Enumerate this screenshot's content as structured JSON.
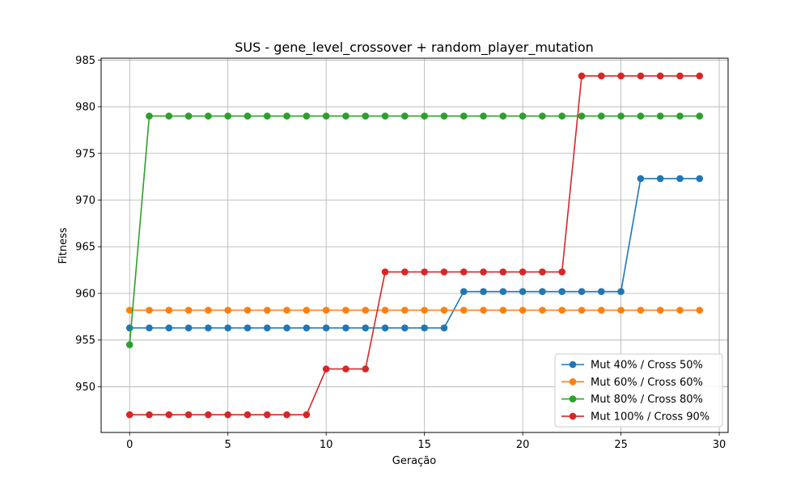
{
  "chart_data": {
    "type": "line",
    "title": "SUS - gene_level_crossover + random_player_mutation",
    "xlabel": "Geração",
    "ylabel": "Fitness",
    "xlim": [
      -1.45,
      30.45
    ],
    "ylim": [
      945.1,
      985.2
    ],
    "xticks": [
      0,
      5,
      10,
      15,
      20,
      25,
      30
    ],
    "yticks": [
      950,
      955,
      960,
      965,
      970,
      975,
      980,
      985
    ],
    "grid": true,
    "legend_position": "lower right",
    "x": [
      0,
      1,
      2,
      3,
      4,
      5,
      6,
      7,
      8,
      9,
      10,
      11,
      12,
      13,
      14,
      15,
      16,
      17,
      18,
      19,
      20,
      21,
      22,
      23,
      24,
      25,
      26,
      27,
      28,
      29
    ],
    "series": [
      {
        "name": "Mut 40% / Cross 50%",
        "color": "#1f77b4",
        "values": [
          956.3,
          956.3,
          956.3,
          956.3,
          956.3,
          956.3,
          956.3,
          956.3,
          956.3,
          956.3,
          956.3,
          956.3,
          956.3,
          956.3,
          956.3,
          956.3,
          956.3,
          960.2,
          960.2,
          960.2,
          960.2,
          960.2,
          960.2,
          960.2,
          960.2,
          960.2,
          972.3,
          972.3,
          972.3,
          972.3
        ]
      },
      {
        "name": "Mut 60% / Cross 60%",
        "color": "#ff7f0e",
        "values": [
          958.2,
          958.2,
          958.2,
          958.2,
          958.2,
          958.2,
          958.2,
          958.2,
          958.2,
          958.2,
          958.2,
          958.2,
          958.2,
          958.2,
          958.2,
          958.2,
          958.2,
          958.2,
          958.2,
          958.2,
          958.2,
          958.2,
          958.2,
          958.2,
          958.2,
          958.2,
          958.2,
          958.2,
          958.2,
          958.2
        ]
      },
      {
        "name": "Mut 80% / Cross 80%",
        "color": "#2ca02c",
        "values": [
          954.5,
          979.0,
          979.0,
          979.0,
          979.0,
          979.0,
          979.0,
          979.0,
          979.0,
          979.0,
          979.0,
          979.0,
          979.0,
          979.0,
          979.0,
          979.0,
          979.0,
          979.0,
          979.0,
          979.0,
          979.0,
          979.0,
          979.0,
          979.0,
          979.0,
          979.0,
          979.0,
          979.0,
          979.0,
          979.0
        ]
      },
      {
        "name": "Mut 100% / Cross 90%",
        "color": "#d62728",
        "values": [
          947.0,
          947.0,
          947.0,
          947.0,
          947.0,
          947.0,
          947.0,
          947.0,
          947.0,
          947.0,
          951.9,
          951.9,
          951.9,
          962.3,
          962.3,
          962.3,
          962.3,
          962.3,
          962.3,
          962.3,
          962.3,
          962.3,
          962.3,
          983.3,
          983.3,
          983.3,
          983.3,
          983.3,
          983.3,
          983.3
        ]
      }
    ]
  }
}
